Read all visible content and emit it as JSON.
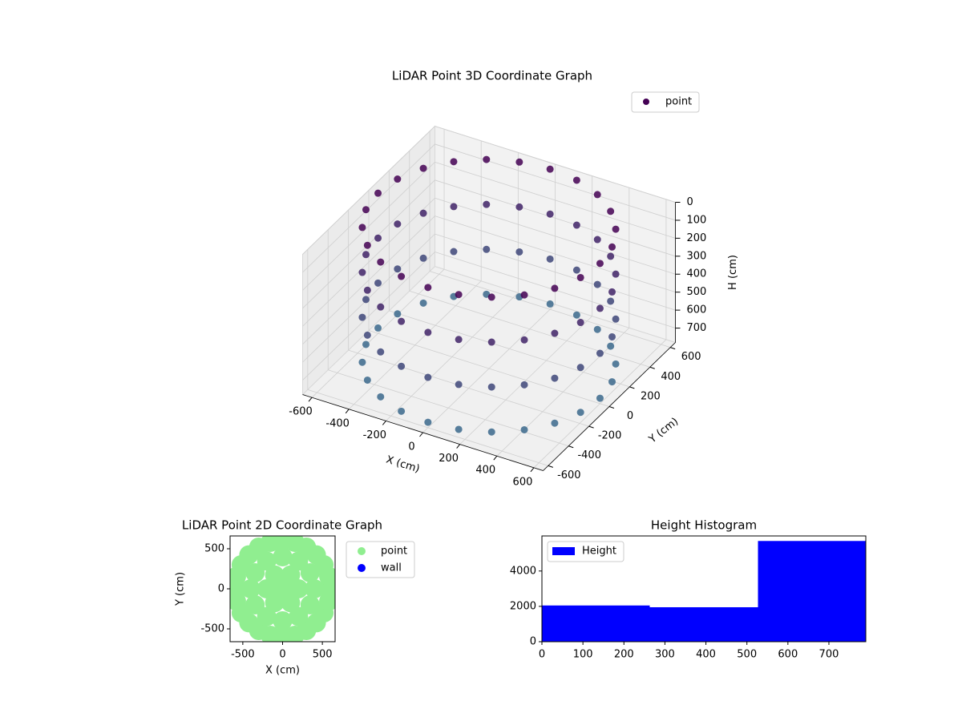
{
  "chart_data": [
    {
      "type": "scatter3d",
      "title": "LiDAR Point 3D Coordinate Graph",
      "x_label": "X (cm)",
      "y_label": "Y (cm)",
      "z_label": "H (cm)",
      "xlim": [
        -650,
        650
      ],
      "ylim": [
        -650,
        650
      ],
      "zlim": [
        780,
        0
      ],
      "xticks": [
        -600,
        -400,
        -200,
        0,
        200,
        400,
        600
      ],
      "yticks": [
        -600,
        -400,
        -200,
        0,
        200,
        400,
        600
      ],
      "zticks": [
        0,
        100,
        200,
        300,
        400,
        500,
        600,
        700
      ],
      "legend": "upper right",
      "colormap": [
        "#440154",
        "#3b6c8e"
      ],
      "series": [
        {
          "name": "point",
          "color": "#440154",
          "x": [
            600,
            580,
            520,
            424,
            300,
            155,
            0,
            -155,
            -300,
            -424,
            -520,
            -580,
            -600,
            -580,
            -520,
            -424,
            -300,
            -155,
            0,
            155,
            300,
            424,
            520,
            580,
            600,
            580,
            520,
            424,
            300,
            155,
            0,
            -155,
            -300,
            -424,
            -520,
            -580,
            -600,
            -580,
            -520,
            -424,
            -300,
            -155,
            0,
            155,
            300,
            424,
            520,
            580,
            600,
            580,
            520,
            424,
            300,
            155,
            0,
            -155,
            -300,
            -424,
            -520,
            -580,
            -600,
            -580,
            -520,
            -424,
            -300,
            -155,
            0,
            155,
            300,
            424,
            520,
            580,
            600,
            580,
            520,
            424,
            300,
            155,
            0,
            -155,
            -300,
            -424,
            -520,
            -580,
            -600,
            -580,
            -520,
            -424,
            -300,
            -155,
            0,
            155,
            300,
            424,
            520,
            580
          ],
          "y": [
            0,
            155,
            300,
            424,
            520,
            580,
            600,
            580,
            520,
            424,
            300,
            155,
            0,
            -155,
            -300,
            -424,
            -520,
            -580,
            -600,
            -580,
            -520,
            -424,
            -300,
            -155,
            0,
            155,
            300,
            424,
            520,
            580,
            600,
            580,
            520,
            424,
            300,
            155,
            0,
            -155,
            -300,
            -424,
            -520,
            -580,
            -600,
            -580,
            -520,
            -424,
            -300,
            -155,
            0,
            155,
            300,
            424,
            520,
            580,
            600,
            580,
            520,
            424,
            300,
            155,
            0,
            -155,
            -300,
            -424,
            -520,
            -580,
            -600,
            -580,
            -520,
            -424,
            -300,
            -155,
            0,
            155,
            300,
            424,
            520,
            580,
            600,
            580,
            520,
            424,
            300,
            155,
            0,
            -155,
            -300,
            -424,
            -520,
            -580,
            -600,
            -580,
            -520,
            -424,
            -300,
            -155
          ],
          "z": [
            0,
            0,
            0,
            0,
            0,
            0,
            0,
            0,
            0,
            0,
            0,
            0,
            0,
            0,
            0,
            0,
            0,
            0,
            0,
            0,
            0,
            0,
            0,
            0,
            250,
            250,
            250,
            250,
            250,
            250,
            250,
            250,
            250,
            250,
            250,
            250,
            250,
            250,
            250,
            250,
            250,
            250,
            250,
            250,
            250,
            250,
            250,
            250,
            500,
            500,
            500,
            500,
            500,
            500,
            500,
            500,
            500,
            500,
            500,
            500,
            500,
            500,
            500,
            500,
            500,
            500,
            500,
            500,
            500,
            500,
            500,
            500,
            750,
            750,
            750,
            750,
            750,
            750,
            750,
            750,
            750,
            750,
            750,
            750,
            750,
            750,
            750,
            750,
            750,
            750,
            750,
            750,
            750,
            750,
            750,
            750
          ]
        }
      ]
    },
    {
      "type": "scatter",
      "title": "LiDAR Point 2D Coordinate Graph",
      "x_label": "X (cm)",
      "y_label": "Y (cm)",
      "xlim": [
        -660,
        660
      ],
      "ylim": [
        -660,
        660
      ],
      "xticks": [
        -500,
        0,
        500
      ],
      "yticks": [
        -500,
        0,
        500
      ],
      "legend": "outside right",
      "series": [
        {
          "name": "point",
          "color": "#90ee90",
          "x": [
            600,
            580,
            520,
            424,
            300,
            155,
            0,
            -155,
            -300,
            -424,
            -520,
            -580,
            -600,
            -580,
            -520,
            -424,
            -300,
            -155,
            0,
            155,
            300,
            424,
            520,
            580,
            400,
            346,
            200,
            0,
            -200,
            -346,
            -400,
            -346,
            -200,
            0,
            200,
            346,
            200,
            100,
            -100,
            -200,
            -100,
            100,
            0
          ],
          "y": [
            0,
            155,
            300,
            424,
            520,
            580,
            600,
            580,
            520,
            424,
            300,
            155,
            0,
            -155,
            -300,
            -424,
            -520,
            -580,
            -600,
            -580,
            -520,
            -424,
            -300,
            -155,
            0,
            200,
            346,
            400,
            346,
            200,
            0,
            -200,
            -346,
            -400,
            -346,
            -200,
            0,
            173,
            173,
            0,
            -173,
            -173,
            0
          ]
        },
        {
          "name": "wall",
          "color": "#0000ff",
          "x": [],
          "y": []
        }
      ]
    },
    {
      "type": "histogram",
      "title": "Height Histogram",
      "bins": [
        0,
        263,
        527,
        790
      ],
      "series": [
        {
          "name": "Height",
          "color": "#0000ff",
          "values": [
            2050,
            1950,
            5700
          ]
        }
      ],
      "xlim": [
        0,
        790
      ],
      "ylim": [
        0,
        5985
      ],
      "xticks": [
        0,
        100,
        200,
        300,
        400,
        500,
        600,
        700
      ],
      "yticks": [
        0,
        2000,
        4000
      ],
      "legend": "upper left"
    }
  ]
}
